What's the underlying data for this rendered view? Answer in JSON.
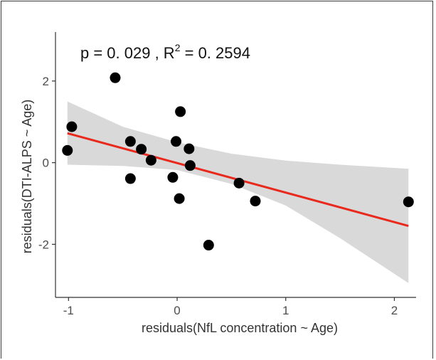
{
  "chart_data": {
    "type": "scatter",
    "annotation": {
      "p_text": "p = 0. 029 , R",
      "r2_sup": "2",
      "r2_value": " = 0. 2594"
    },
    "xlabel": "residuals(NfL concentration ~ Age)",
    "ylabel": "residuals(DTI-ALPS ~ Age)",
    "xlim": [
      -1.12,
      2.2
    ],
    "ylim": [
      -3.3,
      3.2
    ],
    "x_ticks": [
      -1,
      0,
      1,
      2
    ],
    "x_tick_labels": [
      "-1",
      "0",
      "1",
      "2"
    ],
    "y_ticks": [
      -2,
      0,
      2
    ],
    "y_tick_labels": [
      "-2",
      "0",
      "2"
    ],
    "grid": false,
    "points": [
      {
        "x": -0.97,
        "y": 0.88
      },
      {
        "x": -1.01,
        "y": 0.3
      },
      {
        "x": -0.57,
        "y": 2.08
      },
      {
        "x": -0.43,
        "y": 0.52
      },
      {
        "x": -0.33,
        "y": 0.33
      },
      {
        "x": -0.24,
        "y": 0.06
      },
      {
        "x": -0.43,
        "y": -0.39
      },
      {
        "x": -0.04,
        "y": -0.36
      },
      {
        "x": -0.01,
        "y": 0.52
      },
      {
        "x": 0.03,
        "y": 1.25
      },
      {
        "x": 0.11,
        "y": 0.34
      },
      {
        "x": 0.12,
        "y": -0.07
      },
      {
        "x": 0.02,
        "y": -0.88
      },
      {
        "x": 0.29,
        "y": -2.02
      },
      {
        "x": 0.57,
        "y": -0.5
      },
      {
        "x": 0.72,
        "y": -0.94
      },
      {
        "x": 2.13,
        "y": -0.96
      }
    ],
    "fit": {
      "x": [
        -1.01,
        2.13
      ],
      "y": [
        0.72,
        -1.55
      ],
      "color": "#e8291c"
    },
    "confidence_band": {
      "x": [
        -1.01,
        -0.5,
        0.0,
        0.5,
        1.0,
        1.5,
        2.13
      ],
      "upper": [
        1.5,
        0.88,
        0.5,
        0.22,
        0.05,
        -0.05,
        -0.15
      ],
      "lower": [
        -0.05,
        -0.08,
        -0.18,
        -0.52,
        -1.05,
        -1.85,
        -2.95
      ],
      "color": "#d9d9d9"
    },
    "point_color": "#000000"
  }
}
